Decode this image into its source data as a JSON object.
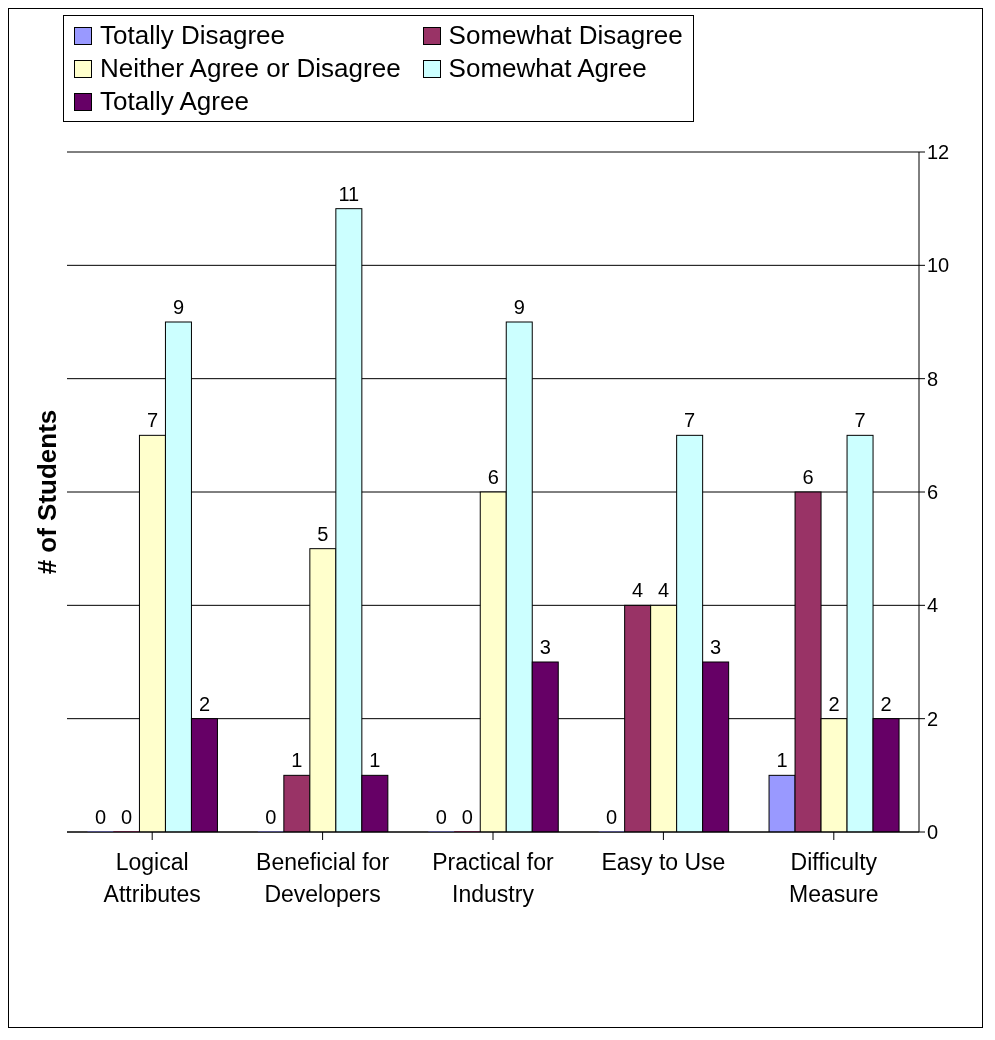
{
  "chart_data": {
    "type": "bar",
    "ylabel": "# of Students",
    "categories": [
      "Logical Attributes",
      "Beneficial for Developers",
      "Practical for Industry",
      "Easy to Use",
      "Difficulty Measure"
    ],
    "series": [
      {
        "name": "Totally Disagree",
        "color": "#9999ff",
        "values": [
          0,
          0,
          0,
          0,
          1
        ]
      },
      {
        "name": "Somewhat Disagree",
        "color": "#993366",
        "values": [
          0,
          1,
          0,
          4,
          6
        ]
      },
      {
        "name": "Neither Agree or Disagree",
        "color": "#ffffcc",
        "values": [
          7,
          5,
          6,
          4,
          2
        ]
      },
      {
        "name": "Somewhat Agree",
        "color": "#ccffff",
        "values": [
          9,
          11,
          9,
          7,
          7
        ]
      },
      {
        "name": "Totally Agree",
        "color": "#660066",
        "values": [
          2,
          1,
          3,
          3,
          2
        ]
      }
    ],
    "ylim": [
      0,
      12
    ],
    "yticks": [
      0,
      2,
      4,
      6,
      8,
      10,
      12
    ],
    "grid": "y",
    "legend": "top",
    "data_labels": true
  }
}
